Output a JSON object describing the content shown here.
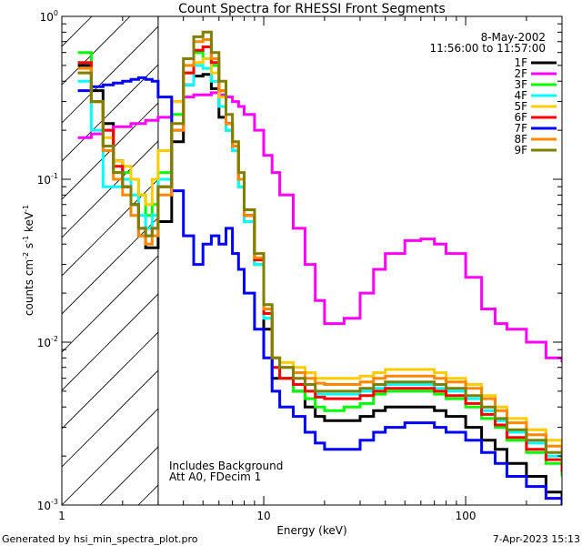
{
  "chart_data": {
    "type": "line",
    "title": "Count Spectra for RHESSI Front Segments",
    "xlabel": "Energy (keV)",
    "ylabel_main": "counts cm",
    "ylabel_sup1": "-2",
    "ylabel_mid1": " s",
    "ylabel_sup2": "-1",
    "ylabel_mid2": " keV",
    "ylabel_sup3": "-1",
    "x_scale": "log",
    "y_scale": "log",
    "xlim": [
      1,
      300
    ],
    "ylim": [
      0.001,
      1
    ],
    "x_ticks": [
      {
        "value": 1,
        "label": "1"
      },
      {
        "value": 10,
        "label": "10"
      },
      {
        "value": 100,
        "label": "100"
      }
    ],
    "y_ticks": [
      {
        "value": 1,
        "base": "10",
        "exp": "0"
      },
      {
        "value": 0.1,
        "base": "10",
        "exp": "-1"
      },
      {
        "value": 0.01,
        "base": "10",
        "exp": "-2"
      },
      {
        "value": 0.001,
        "base": "10",
        "exp": "-3"
      }
    ],
    "date": "8-May-2002",
    "time_range": "11:56:00 to 11:57:00",
    "annotations": [
      "Includes Background",
      "Att A0, FDecim 1"
    ],
    "footer_left": "Generated by hsi_min_spectra_plot.pro",
    "footer_right": "7-Apr-2023 15:13",
    "hatched_region_max_energy": 3,
    "energy_bins": [
      1.2,
      1.4,
      1.6,
      1.8,
      2.0,
      2.2,
      2.4,
      2.6,
      2.8,
      3.0,
      3.5,
      4.0,
      4.5,
      5.0,
      5.5,
      6.0,
      6.5,
      7.0,
      7.5,
      8.0,
      9.0,
      10.0,
      11.0,
      12.0,
      14.0,
      16.0,
      18.0,
      20.0,
      25.0,
      30.0,
      35.0,
      40.0,
      50.0,
      60.0,
      70.0,
      80.0,
      100.0,
      120.0,
      140.0,
      160.0,
      200.0,
      250.0,
      300.0
    ],
    "series": [
      {
        "name": "1F",
        "color": "#000000",
        "values": [
          0.5,
          0.35,
          0.22,
          0.13,
          0.09,
          0.07,
          0.045,
          0.038,
          0.038,
          0.055,
          0.17,
          0.38,
          0.43,
          0.44,
          0.36,
          0.24,
          0.2,
          0.15,
          0.1,
          0.06,
          0.03,
          0.012,
          0.006,
          0.006,
          0.005,
          0.004,
          0.0035,
          0.0033,
          0.0033,
          0.0035,
          0.0038,
          0.004,
          0.004,
          0.004,
          0.0038,
          0.0035,
          0.003,
          0.0025,
          0.0022,
          0.0018,
          0.0015,
          0.0012,
          0.001
        ]
      },
      {
        "name": "2F",
        "color": "#ff00ff",
        "values": [
          0.18,
          0.19,
          0.2,
          0.21,
          0.21,
          0.22,
          0.22,
          0.23,
          0.23,
          0.24,
          0.3,
          0.32,
          0.33,
          0.33,
          0.34,
          0.33,
          0.32,
          0.3,
          0.28,
          0.25,
          0.2,
          0.14,
          0.11,
          0.08,
          0.05,
          0.03,
          0.018,
          0.013,
          0.014,
          0.02,
          0.028,
          0.035,
          0.042,
          0.043,
          0.04,
          0.035,
          0.025,
          0.016,
          0.013,
          0.012,
          0.01,
          0.008,
          0.0075
        ]
      },
      {
        "name": "3F",
        "color": "#00ff00",
        "values": [
          0.6,
          0.3,
          0.15,
          0.11,
          0.11,
          0.1,
          0.08,
          0.06,
          0.07,
          0.11,
          0.25,
          0.45,
          0.6,
          0.55,
          0.5,
          0.35,
          0.2,
          0.15,
          0.09,
          0.06,
          0.03,
          0.015,
          0.007,
          0.006,
          0.005,
          0.0045,
          0.004,
          0.0038,
          0.004,
          0.0042,
          0.0048,
          0.005,
          0.005,
          0.005,
          0.0048,
          0.0045,
          0.004,
          0.0034,
          0.003,
          0.0025,
          0.0021,
          0.0018,
          0.0015
        ]
      },
      {
        "name": "4F",
        "color": "#00ffff",
        "values": [
          0.4,
          0.2,
          0.09,
          0.09,
          0.1,
          0.08,
          0.06,
          0.05,
          0.06,
          0.1,
          0.2,
          0.38,
          0.5,
          0.48,
          0.4,
          0.28,
          0.2,
          0.15,
          0.09,
          0.055,
          0.03,
          0.014,
          0.007,
          0.006,
          0.0055,
          0.005,
          0.0048,
          0.0048,
          0.0048,
          0.005,
          0.0052,
          0.0055,
          0.0055,
          0.0055,
          0.0052,
          0.005,
          0.0045,
          0.0038,
          0.0033,
          0.0028,
          0.0024,
          0.002,
          0.0017
        ]
      },
      {
        "name": "5F",
        "color": "#ffcc00",
        "values": [
          0.45,
          0.3,
          0.18,
          0.13,
          0.12,
          0.1,
          0.08,
          0.07,
          0.1,
          0.15,
          0.3,
          0.45,
          0.52,
          0.55,
          0.45,
          0.32,
          0.22,
          0.17,
          0.1,
          0.06,
          0.035,
          0.016,
          0.008,
          0.0075,
          0.007,
          0.0065,
          0.006,
          0.006,
          0.006,
          0.0062,
          0.0065,
          0.0068,
          0.0068,
          0.0068,
          0.0065,
          0.006,
          0.0055,
          0.0047,
          0.004,
          0.0034,
          0.0029,
          0.0025,
          0.0021
        ]
      },
      {
        "name": "6F",
        "color": "#ff0000",
        "values": [
          0.52,
          0.3,
          0.2,
          0.12,
          0.09,
          0.07,
          0.05,
          0.045,
          0.05,
          0.09,
          0.2,
          0.45,
          0.62,
          0.65,
          0.52,
          0.35,
          0.22,
          0.16,
          0.1,
          0.06,
          0.032,
          0.015,
          0.007,
          0.006,
          0.0055,
          0.005,
          0.0046,
          0.0045,
          0.0045,
          0.0047,
          0.005,
          0.0052,
          0.0052,
          0.0052,
          0.005,
          0.0047,
          0.0042,
          0.0036,
          0.0031,
          0.0026,
          0.0022,
          0.0019,
          0.0016
        ]
      },
      {
        "name": "7F",
        "color": "#0000ff",
        "values": [
          0.35,
          0.37,
          0.38,
          0.39,
          0.4,
          0.41,
          0.42,
          0.41,
          0.4,
          0.32,
          0.085,
          0.045,
          0.03,
          0.04,
          0.045,
          0.04,
          0.05,
          0.035,
          0.028,
          0.02,
          0.012,
          0.008,
          0.005,
          0.004,
          0.0035,
          0.0028,
          0.0024,
          0.0022,
          0.0022,
          0.0025,
          0.0028,
          0.003,
          0.0032,
          0.0032,
          0.003,
          0.0028,
          0.0025,
          0.0021,
          0.0018,
          0.0015,
          0.0013,
          0.0011,
          0.001
        ]
      },
      {
        "name": "8F",
        "color": "#ff8800",
        "values": [
          0.48,
          0.3,
          0.15,
          0.1,
          0.08,
          0.06,
          0.045,
          0.04,
          0.045,
          0.08,
          0.2,
          0.5,
          0.7,
          0.72,
          0.55,
          0.35,
          0.22,
          0.16,
          0.1,
          0.06,
          0.033,
          0.016,
          0.008,
          0.007,
          0.0065,
          0.006,
          0.0056,
          0.0055,
          0.0055,
          0.0057,
          0.006,
          0.0062,
          0.0062,
          0.0062,
          0.006,
          0.0057,
          0.0052,
          0.0045,
          0.0038,
          0.0032,
          0.0027,
          0.0023,
          0.002
        ]
      },
      {
        "name": "9F",
        "color": "#808000",
        "values": [
          0.45,
          0.3,
          0.16,
          0.11,
          0.09,
          0.07,
          0.05,
          0.045,
          0.05,
          0.09,
          0.22,
          0.55,
          0.75,
          0.8,
          0.6,
          0.4,
          0.25,
          0.17,
          0.11,
          0.065,
          0.035,
          0.017,
          0.008,
          0.007,
          0.006,
          0.0055,
          0.005,
          0.005,
          0.005,
          0.0052,
          0.0055,
          0.0057,
          0.0057,
          0.0057,
          0.0055,
          0.0052,
          0.0047,
          0.004,
          0.0034,
          0.0029,
          0.0025,
          0.0021,
          0.0018
        ]
      }
    ]
  }
}
